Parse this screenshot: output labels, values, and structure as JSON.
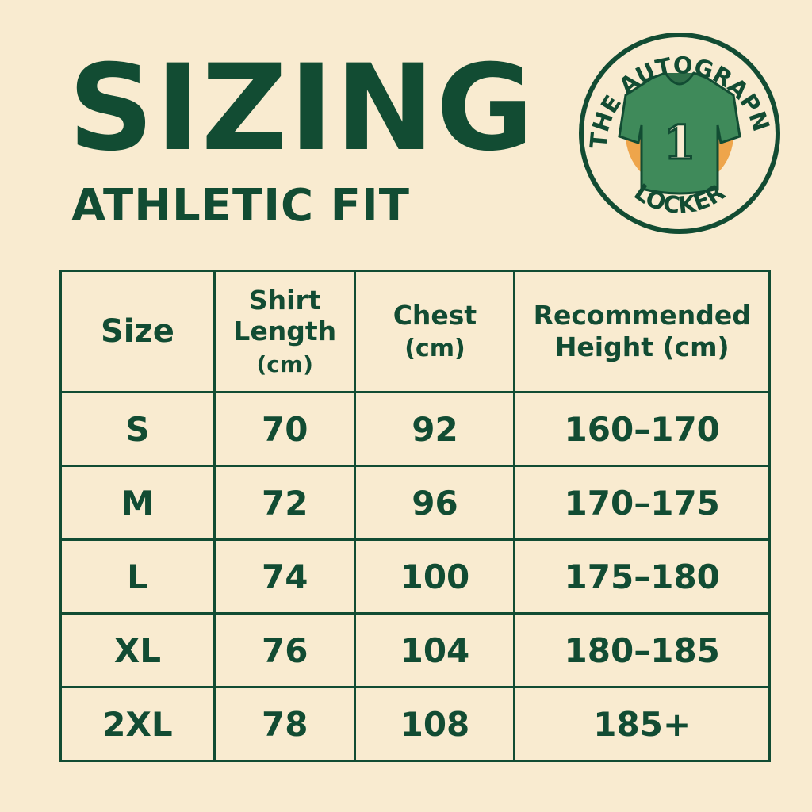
{
  "title": "SIZING",
  "subtitle": "ATHLETIC FIT",
  "logo": {
    "text_top": "THE AUTOGRAPN",
    "text_bottom": "LOCKER",
    "jersey_number": "1",
    "colors": {
      "green": "#124c33",
      "jersey": "#3f8a5a",
      "accent": "#eea54b"
    }
  },
  "table": {
    "headers": [
      "Size",
      "Shirt Length (cm)",
      "Chest (cm)",
      "Recommended Height (cm)"
    ],
    "header_lines": [
      [
        "Size"
      ],
      [
        "Shirt",
        "Length",
        "(cm)"
      ],
      [
        "Chest",
        "(cm)"
      ],
      [
        "Recommended",
        "Height (cm)"
      ]
    ],
    "rows": [
      [
        "S",
        "70",
        "92",
        "160–170"
      ],
      [
        "M",
        "72",
        "96",
        "170–175"
      ],
      [
        "L",
        "74",
        "100",
        "175–180"
      ],
      [
        "XL",
        "76",
        "104",
        "180–185"
      ],
      [
        "2XL",
        "78",
        "108",
        "185+"
      ]
    ]
  },
  "colors": {
    "background": "#f9ebd0",
    "primary": "#124c33"
  }
}
